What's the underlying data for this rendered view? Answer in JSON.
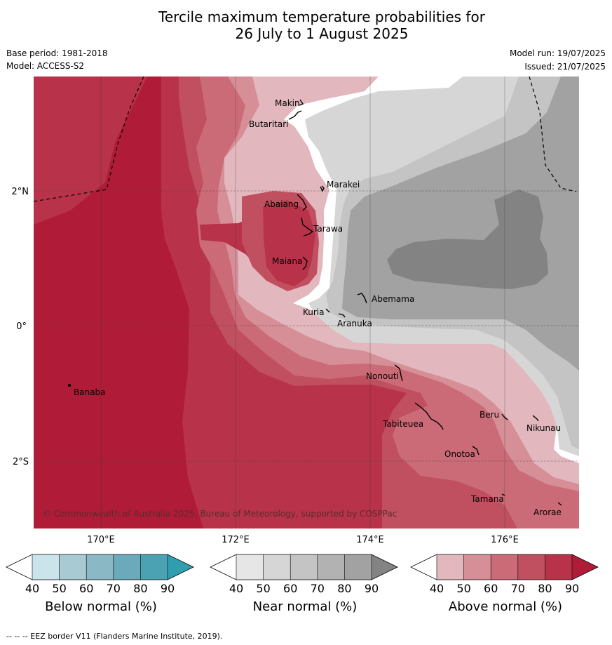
{
  "title": {
    "line1": "Tercile maximum temperature probabilities for",
    "line2": "26 July to 1 August 2025"
  },
  "meta": {
    "base_period": "Base period: 1981-2018",
    "model": "Model: ACCESS-S2",
    "model_run": "Model run: 19/07/2025",
    "issued": "Issued: 21/07/2025"
  },
  "map": {
    "lat_labels": [
      "2°N",
      "0°",
      "2°S"
    ],
    "lon_labels": [
      "170°E",
      "172°E",
      "174°E",
      "176°E"
    ],
    "copyright": "© Commonwealth of Australia 2025, Bureau of Meteorology, supported by COSPPac",
    "places": [
      "Makin",
      "Butaritari",
      "Marakei",
      "Abaiang",
      "Tarawa",
      "Maiana",
      "Abemama",
      "Kuria",
      "Aranuka",
      "Nonouti",
      "Banaba",
      "Tabiteuea",
      "Beru",
      "Nikunau",
      "Onotoa",
      "Tamana",
      "Arorae"
    ]
  },
  "colorbars": [
    {
      "title": "Below normal (%)",
      "ticks": [
        "40",
        "50",
        "60",
        "70",
        "80",
        "90"
      ],
      "colors": [
        "#ffffff",
        "#cbe3ea",
        "#a8cad2",
        "#8ab8c4",
        "#6aaabb",
        "#4aa2b3",
        "#319eb0"
      ]
    },
    {
      "title": "Near normal (%)",
      "ticks": [
        "40",
        "50",
        "60",
        "70",
        "80",
        "90"
      ],
      "colors": [
        "#ffffff",
        "#e6e6e6",
        "#d6d6d6",
        "#c4c4c4",
        "#b2b2b2",
        "#a2a2a2",
        "#838383"
      ]
    },
    {
      "title": "Above normal (%)",
      "ticks": [
        "40",
        "50",
        "60",
        "70",
        "80",
        "90"
      ],
      "colors": [
        "#ffffff",
        "#e2b8be",
        "#d68e97",
        "#cb6b77",
        "#c05060",
        "#b8334a",
        "#b01c38"
      ]
    }
  ],
  "footnote": "-- -- -- EEZ border V11 (Flanders Marine Institute, 2019)."
}
